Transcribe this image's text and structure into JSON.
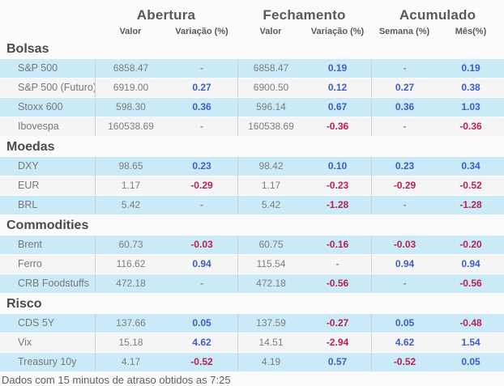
{
  "header": {
    "groups": [
      {
        "label": "Abertura",
        "sub": [
          "Valor",
          "Variação (%)"
        ]
      },
      {
        "label": "Fechamento",
        "sub": [
          "Valor",
          "Variação (%)"
        ]
      },
      {
        "label": "Acumulado",
        "sub": [
          "Semana (%)",
          "Mês(%)"
        ]
      }
    ]
  },
  "sections": [
    {
      "title": "Bolsas",
      "rows": [
        {
          "label": "S&P 500",
          "open_val": "6858.47",
          "open_var": "-",
          "close_val": "6858.47",
          "close_var": "0.19",
          "week": "-",
          "month": "0.19"
        },
        {
          "label": "S&P 500 (Futuro)",
          "open_val": "6919.00",
          "open_var": "0.27",
          "close_val": "6900.50",
          "close_var": "0.12",
          "week": "0.27",
          "month": "0.38"
        },
        {
          "label": "Stoxx 600",
          "open_val": "598.30",
          "open_var": "0.36",
          "close_val": "596.14",
          "close_var": "0.67",
          "week": "0.36",
          "month": "1.03"
        },
        {
          "label": "Ibovespa",
          "open_val": "160538.69",
          "open_var": "-",
          "close_val": "160538.69",
          "close_var": "-0.36",
          "week": "-",
          "month": "-0.36"
        }
      ]
    },
    {
      "title": "Moedas",
      "rows": [
        {
          "label": "DXY",
          "open_val": "98.65",
          "open_var": "0.23",
          "close_val": "98.42",
          "close_var": "0.10",
          "week": "0.23",
          "month": "0.34"
        },
        {
          "label": "EUR",
          "open_val": "1.17",
          "open_var": "-0.29",
          "close_val": "1.17",
          "close_var": "-0.23",
          "week": "-0.29",
          "month": "-0.52"
        },
        {
          "label": "BRL",
          "open_val": "5.42",
          "open_var": "-",
          "close_val": "5.42",
          "close_var": "-1.28",
          "week": "-",
          "month": "-1.28"
        }
      ]
    },
    {
      "title": "Commodities",
      "rows": [
        {
          "label": "Brent",
          "open_val": "60.73",
          "open_var": "-0.03",
          "close_val": "60.75",
          "close_var": "-0.16",
          "week": "-0.03",
          "month": "-0.20"
        },
        {
          "label": "Ferro",
          "open_val": "116.62",
          "open_var": "0.94",
          "close_val": "115.54",
          "close_var": "-",
          "week": "0.94",
          "month": "0.94"
        },
        {
          "label": "CRB Foodstuffs",
          "open_val": "472.18",
          "open_var": "-",
          "close_val": "472.18",
          "close_var": "-0.56",
          "week": "-",
          "month": "-0.56"
        }
      ]
    },
    {
      "title": "Risco",
      "rows": [
        {
          "label": "CDS 5Y",
          "open_val": "137.66",
          "open_var": "0.05",
          "close_val": "137.59",
          "close_var": "-0.27",
          "week": "0.05",
          "month": "-0.48"
        },
        {
          "label": "Vix",
          "open_val": "15.18",
          "open_var": "4.62",
          "close_val": "14.51",
          "close_var": "-2.94",
          "week": "4.62",
          "month": "1.54"
        },
        {
          "label": "Treasury 10y",
          "open_val": "4.17",
          "open_var": "-0.52",
          "close_val": "4.19",
          "close_var": "0.57",
          "week": "-0.52",
          "month": "0.05"
        }
      ]
    }
  ],
  "footer": {
    "text": "Dados com 15 minutos de atraso obtidos as 7:25"
  },
  "colors": {
    "positive": "#3d5ec6",
    "negative": "#b92153",
    "row_highlight": "#c9eaf6",
    "row_alt": "#f5f5f5",
    "divider": "#cfcfcf"
  }
}
